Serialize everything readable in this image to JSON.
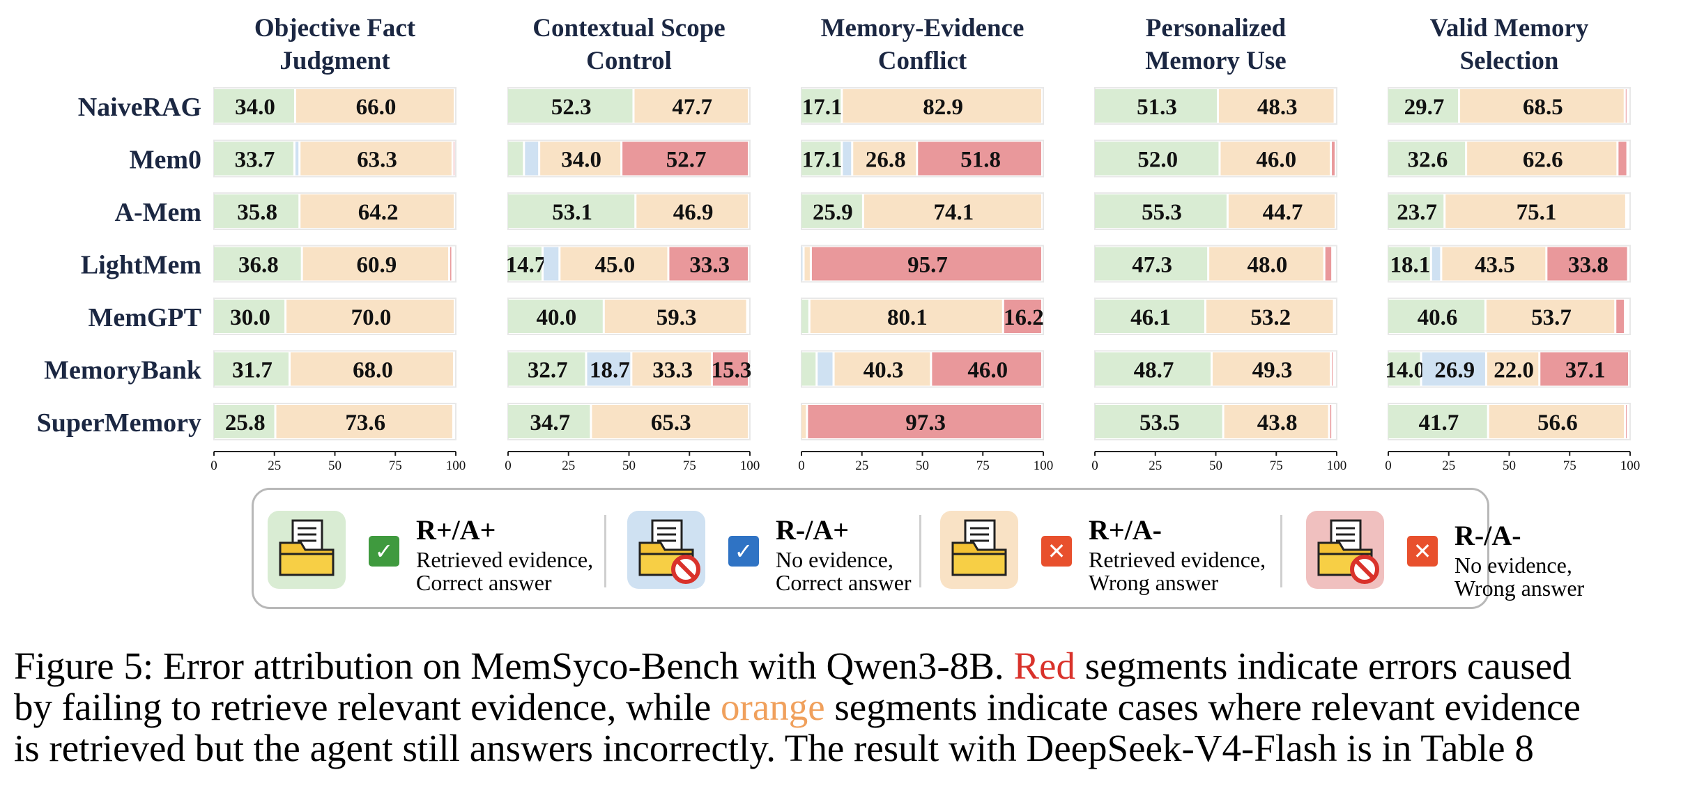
{
  "chart_data": {
    "type": "bar",
    "orientation": "horizontal-stacked",
    "categories": [
      "NaiveRAG",
      "Mem0",
      "A-Mem",
      "LightMem",
      "MemGPT",
      "MemoryBank",
      "SuperMemory"
    ],
    "xlim": [
      0,
      100
    ],
    "x_ticks": [
      "0",
      "25",
      "50",
      "75",
      "100"
    ],
    "segment_colors": [
      "#d9ecd3",
      "#cfe1f2",
      "#f9e2c5",
      "#e9989b"
    ],
    "panels": [
      {
        "title_lines": [
          "Objective Fact",
          "Judgment"
        ],
        "rows": [
          {
            "values": [
              34.0,
              0,
              66.0,
              0
            ],
            "labels": [
              "34.0",
              "",
              "66.0",
              ""
            ]
          },
          {
            "values": [
              33.7,
              2.1,
              63.3,
              0.9
            ],
            "labels": [
              "33.7",
              "",
              "63.3",
              ""
            ]
          },
          {
            "values": [
              35.8,
              0,
              64.2,
              0
            ],
            "labels": [
              "35.8",
              "",
              "64.2",
              ""
            ]
          },
          {
            "values": [
              36.8,
              0,
              60.9,
              1.3
            ],
            "labels": [
              "36.8",
              "",
              "60.9",
              ""
            ]
          },
          {
            "values": [
              30.0,
              0,
              70.0,
              0
            ],
            "labels": [
              "30.0",
              "",
              "70.0",
              ""
            ]
          },
          {
            "values": [
              31.7,
              0,
              68.0,
              0
            ],
            "labels": [
              "31.7",
              "",
              "68.0",
              ""
            ]
          },
          {
            "values": [
              25.8,
              0,
              73.6,
              0
            ],
            "labels": [
              "25.8",
              "",
              "73.6",
              ""
            ]
          }
        ]
      },
      {
        "title_lines": [
          "Contextual Scope",
          "Control"
        ],
        "rows": [
          {
            "values": [
              52.3,
              0,
              47.7,
              0
            ],
            "labels": [
              "52.3",
              "",
              "47.7",
              ""
            ]
          },
          {
            "values": [
              7.0,
              6.3,
              34.0,
              52.7
            ],
            "labels": [
              "",
              "",
              "34.0",
              "52.7"
            ]
          },
          {
            "values": [
              53.1,
              0,
              46.9,
              0
            ],
            "labels": [
              "53.1",
              "",
              "46.9",
              ""
            ]
          },
          {
            "values": [
              14.7,
              7.0,
              45.0,
              33.3
            ],
            "labels": [
              "14.7",
              "",
              "45.0",
              "33.3"
            ]
          },
          {
            "values": [
              40.0,
              0,
              59.3,
              0
            ],
            "labels": [
              "40.0",
              "",
              "59.3",
              ""
            ]
          },
          {
            "values": [
              32.7,
              18.7,
              33.3,
              15.3
            ],
            "labels": [
              "32.7",
              "18.7",
              "33.3",
              "15.3"
            ]
          },
          {
            "values": [
              34.7,
              0,
              65.3,
              0
            ],
            "labels": [
              "34.7",
              "",
              "65.3",
              ""
            ]
          }
        ]
      },
      {
        "title_lines": [
          "Memory-Evidence",
          "Conflict"
        ],
        "rows": [
          {
            "values": [
              17.1,
              0,
              82.9,
              0
            ],
            "labels": [
              "17.1",
              "",
              "82.9",
              ""
            ]
          },
          {
            "values": [
              17.1,
              4.3,
              26.8,
              51.8
            ],
            "labels": [
              "17.1",
              "",
              "26.8",
              "51.8"
            ]
          },
          {
            "values": [
              25.9,
              0,
              74.1,
              0
            ],
            "labels": [
              "25.9",
              "",
              "74.1",
              ""
            ]
          },
          {
            "values": [
              0,
              1.3,
              3.0,
              95.7
            ],
            "labels": [
              "",
              "",
              "",
              "95.7"
            ]
          },
          {
            "values": [
              3.7,
              0,
              80.1,
              16.2
            ],
            "labels": [
              "",
              "",
              "80.1",
              "16.2"
            ]
          },
          {
            "values": [
              6.7,
              7.0,
              40.3,
              46.0
            ],
            "labels": [
              "",
              "",
              "40.3",
              "46.0"
            ]
          },
          {
            "values": [
              0,
              0,
              2.7,
              97.3
            ],
            "labels": [
              "",
              "",
              "",
              "97.3"
            ]
          }
        ]
      },
      {
        "title_lines": [
          "Personalized",
          "Memory Use"
        ],
        "rows": [
          {
            "values": [
              51.3,
              0,
              48.3,
              0
            ],
            "labels": [
              "51.3",
              "",
              "48.3",
              ""
            ]
          },
          {
            "values": [
              52.0,
              0,
              46.0,
              2.0
            ],
            "labels": [
              "52.0",
              "",
              "46.0",
              ""
            ]
          },
          {
            "values": [
              55.3,
              0,
              44.7,
              0
            ],
            "labels": [
              "55.3",
              "",
              "44.7",
              ""
            ]
          },
          {
            "values": [
              47.3,
              0,
              48.0,
              3.3
            ],
            "labels": [
              "47.3",
              "",
              "48.0",
              ""
            ]
          },
          {
            "values": [
              46.1,
              0,
              53.2,
              0
            ],
            "labels": [
              "46.1",
              "",
              "53.2",
              ""
            ]
          },
          {
            "values": [
              48.7,
              0,
              49.3,
              0.7
            ],
            "labels": [
              "48.7",
              "",
              "49.3",
              ""
            ]
          },
          {
            "values": [
              53.5,
              0,
              43.8,
              1.3
            ],
            "labels": [
              "53.5",
              "",
              "43.8",
              ""
            ]
          }
        ]
      },
      {
        "title_lines": [
          "Valid Memory",
          "Selection"
        ],
        "rows": [
          {
            "values": [
              29.7,
              0,
              68.5,
              1.0
            ],
            "labels": [
              "29.7",
              "",
              "68.5",
              ""
            ]
          },
          {
            "values": [
              32.6,
              0,
              62.6,
              4.1
            ],
            "labels": [
              "32.6",
              "",
              "62.6",
              ""
            ]
          },
          {
            "values": [
              23.7,
              0,
              75.1,
              0
            ],
            "labels": [
              "23.7",
              "",
              "75.1",
              ""
            ]
          },
          {
            "values": [
              18.1,
              4.2,
              43.5,
              33.8
            ],
            "labels": [
              "18.1",
              "",
              "43.5",
              "33.8"
            ]
          },
          {
            "values": [
              40.6,
              0,
              53.7,
              4.0
            ],
            "labels": [
              "40.6",
              "",
              "53.7",
              ""
            ]
          },
          {
            "values": [
              14.0,
              26.9,
              22.0,
              37.1
            ],
            "labels": [
              "14.0",
              "26.9",
              "22.0",
              "37.1"
            ]
          },
          {
            "values": [
              41.7,
              0,
              56.6,
              0.7
            ],
            "labels": [
              "41.7",
              "",
              "56.6",
              ""
            ]
          }
        ]
      }
    ]
  },
  "legend": [
    {
      "title": "R+/A+",
      "line1": "Retrieved evidence,",
      "line2": "Correct answer",
      "badge": "✓",
      "badge_color": "#3f9a3e",
      "icon_bg": "#d9ecd3",
      "icon": "folder-document-icon"
    },
    {
      "title": "R-/A+",
      "line1": "No evidence,",
      "line2": "Correct answer",
      "badge": "✓",
      "badge_color": "#2f73c4",
      "icon_bg": "#cfe1f2",
      "icon": "folder-no-document-icon"
    },
    {
      "title": "R+/A-",
      "line1": "Retrieved evidence,",
      "line2": "Wrong answer",
      "badge": "✕",
      "badge_color": "#e8502d",
      "icon_bg": "#f9e2c5",
      "icon": "folder-document-icon"
    },
    {
      "title": "R-/A-",
      "line1": "No evidence,",
      "line2": "Wrong answer",
      "badge": "✕",
      "badge_color": "#e8502d",
      "icon_bg": "#f0c0bf",
      "icon": "folder-no-document-icon"
    }
  ],
  "caption": {
    "l1_a": "Figure 5: Error attribution on MemSyco-Bench with Qwen3-8B. ",
    "l1_red": "Red",
    "l1_b": " segments indicate errors caused",
    "l2_a": "by failing to retrieve relevant evidence, while ",
    "l2_orange": "orange",
    "l2_b": " segments indicate cases where relevant evidence",
    "l3": "is retrieved but the agent still answers incorrectly. The result with DeepSeek-V4-Flash is in Table 8"
  }
}
